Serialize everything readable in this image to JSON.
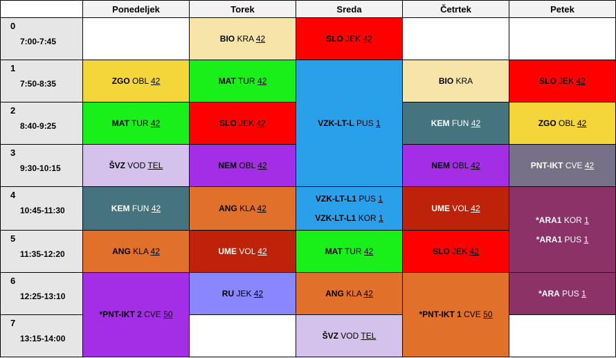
{
  "days": [
    "Ponedeljek",
    "Torek",
    "Sreda",
    "Četrtek",
    "Petek"
  ],
  "periods": [
    {
      "num": "0",
      "time": "7:00-7:45"
    },
    {
      "num": "1",
      "time": "7:50-8:35"
    },
    {
      "num": "2",
      "time": "8:40-9:25"
    },
    {
      "num": "3",
      "time": "9:30-10:15"
    },
    {
      "num": "4",
      "time": "10:45-11:30"
    },
    {
      "num": "5",
      "time": "11:35-12:20"
    },
    {
      "num": "6",
      "time": "12:25-13:10"
    },
    {
      "num": "7",
      "time": "13:15-14:00"
    }
  ],
  "colors": {
    "white": "#ffffff",
    "bio": "#f6e4a9",
    "slo": "#ff0000",
    "zgo": "#f4d53a",
    "mat": "#19f019",
    "vzk": "#2ba0ea",
    "kem": "#45737e",
    "svz": "#d4c1ec",
    "nem": "#a42ee6",
    "pnt_ikt": "#767186",
    "ang": "#e0702a",
    "ara": "#8b3268",
    "ume": "#be2209",
    "pnt_ikt_50": "#a42ee6",
    "ru": "#8a86fc",
    "pnt_ikt_1": "#e0702a"
  },
  "lessons": {
    "mon_p1": [
      {
        "subject": "ZGO",
        "teacher": "OBL",
        "room": "42"
      }
    ],
    "mon_p2": [
      {
        "subject": "MAT",
        "teacher": "TUR",
        "room": "42"
      }
    ],
    "mon_p3": [
      {
        "subject": "ŠVZ",
        "teacher": "VOD",
        "room": "TEL"
      }
    ],
    "mon_p4": [
      {
        "subject": "KEM",
        "teacher": "FUN",
        "room": "42"
      }
    ],
    "mon_p5": [
      {
        "subject": "ANG",
        "teacher": "KLA",
        "room": "42"
      }
    ],
    "mon_p6": [
      {
        "subject": "*PNT-IKT 2",
        "teacher": "CVE",
        "room": "50"
      }
    ],
    "tue_p0": [
      {
        "subject": "BIO",
        "teacher": "KRA",
        "room": "42"
      }
    ],
    "tue_p1": [
      {
        "subject": "MAT",
        "teacher": "TUR",
        "room": "42"
      }
    ],
    "tue_p2": [
      {
        "subject": "SLO",
        "teacher": "JEK",
        "room": "42"
      }
    ],
    "tue_p3": [
      {
        "subject": "NEM",
        "teacher": "OBL",
        "room": "42"
      }
    ],
    "tue_p4": [
      {
        "subject": "ANG",
        "teacher": "KLA",
        "room": "42"
      }
    ],
    "tue_p5": [
      {
        "subject": "UME",
        "teacher": "VOL",
        "room": "42"
      }
    ],
    "tue_p6": [
      {
        "subject": "RU",
        "teacher": "JEK",
        "room": "42"
      }
    ],
    "wed_p0": [
      {
        "subject": "SLO",
        "teacher": "JEK",
        "room": "42"
      }
    ],
    "wed_p1": [
      {
        "subject": "VZK-LT-L",
        "teacher": "PUS",
        "room": "1"
      }
    ],
    "wed_p4": [
      {
        "subject": "VZK-LT-L1",
        "teacher": "PUS",
        "room": "1"
      },
      {
        "subject": "VZK-LT-L1",
        "teacher": "KOR",
        "room": "1"
      }
    ],
    "wed_p5": [
      {
        "subject": "MAT",
        "teacher": "TUR",
        "room": "42"
      }
    ],
    "wed_p6": [
      {
        "subject": "ANG",
        "teacher": "KLA",
        "room": "42"
      }
    ],
    "wed_p7": [
      {
        "subject": "ŠVZ",
        "teacher": "VOD",
        "room": "TEL"
      }
    ],
    "thu_p1": [
      {
        "subject": "BIO",
        "teacher": "KRA",
        "room": ""
      }
    ],
    "thu_p2": [
      {
        "subject": "KEM",
        "teacher": "FUN",
        "room": "42"
      }
    ],
    "thu_p3": [
      {
        "subject": "NEM",
        "teacher": "OBL",
        "room": "42"
      }
    ],
    "thu_p4": [
      {
        "subject": "UME",
        "teacher": "VOL",
        "room": "42"
      }
    ],
    "thu_p5": [
      {
        "subject": "SLO",
        "teacher": "JEK",
        "room": "42"
      }
    ],
    "thu_p6": [
      {
        "subject": "*PNT-IKT 1",
        "teacher": "CVE",
        "room": "50"
      }
    ],
    "fri_p1": [
      {
        "subject": "SLO",
        "teacher": "JEK",
        "room": "42"
      }
    ],
    "fri_p2": [
      {
        "subject": "ZGO",
        "teacher": "OBL",
        "room": "42"
      }
    ],
    "fri_p3": [
      {
        "subject": "PNT-IKT",
        "teacher": "CVE",
        "room": "42"
      }
    ],
    "fri_p4": [
      {
        "subject": "*ARA1",
        "teacher": "KOR",
        "room": "1"
      },
      {
        "subject": "*ARA1",
        "teacher": "PUS",
        "room": "1"
      }
    ],
    "fri_p6": [
      {
        "subject": "*ARA",
        "teacher": "PUS",
        "room": "1"
      }
    ]
  }
}
